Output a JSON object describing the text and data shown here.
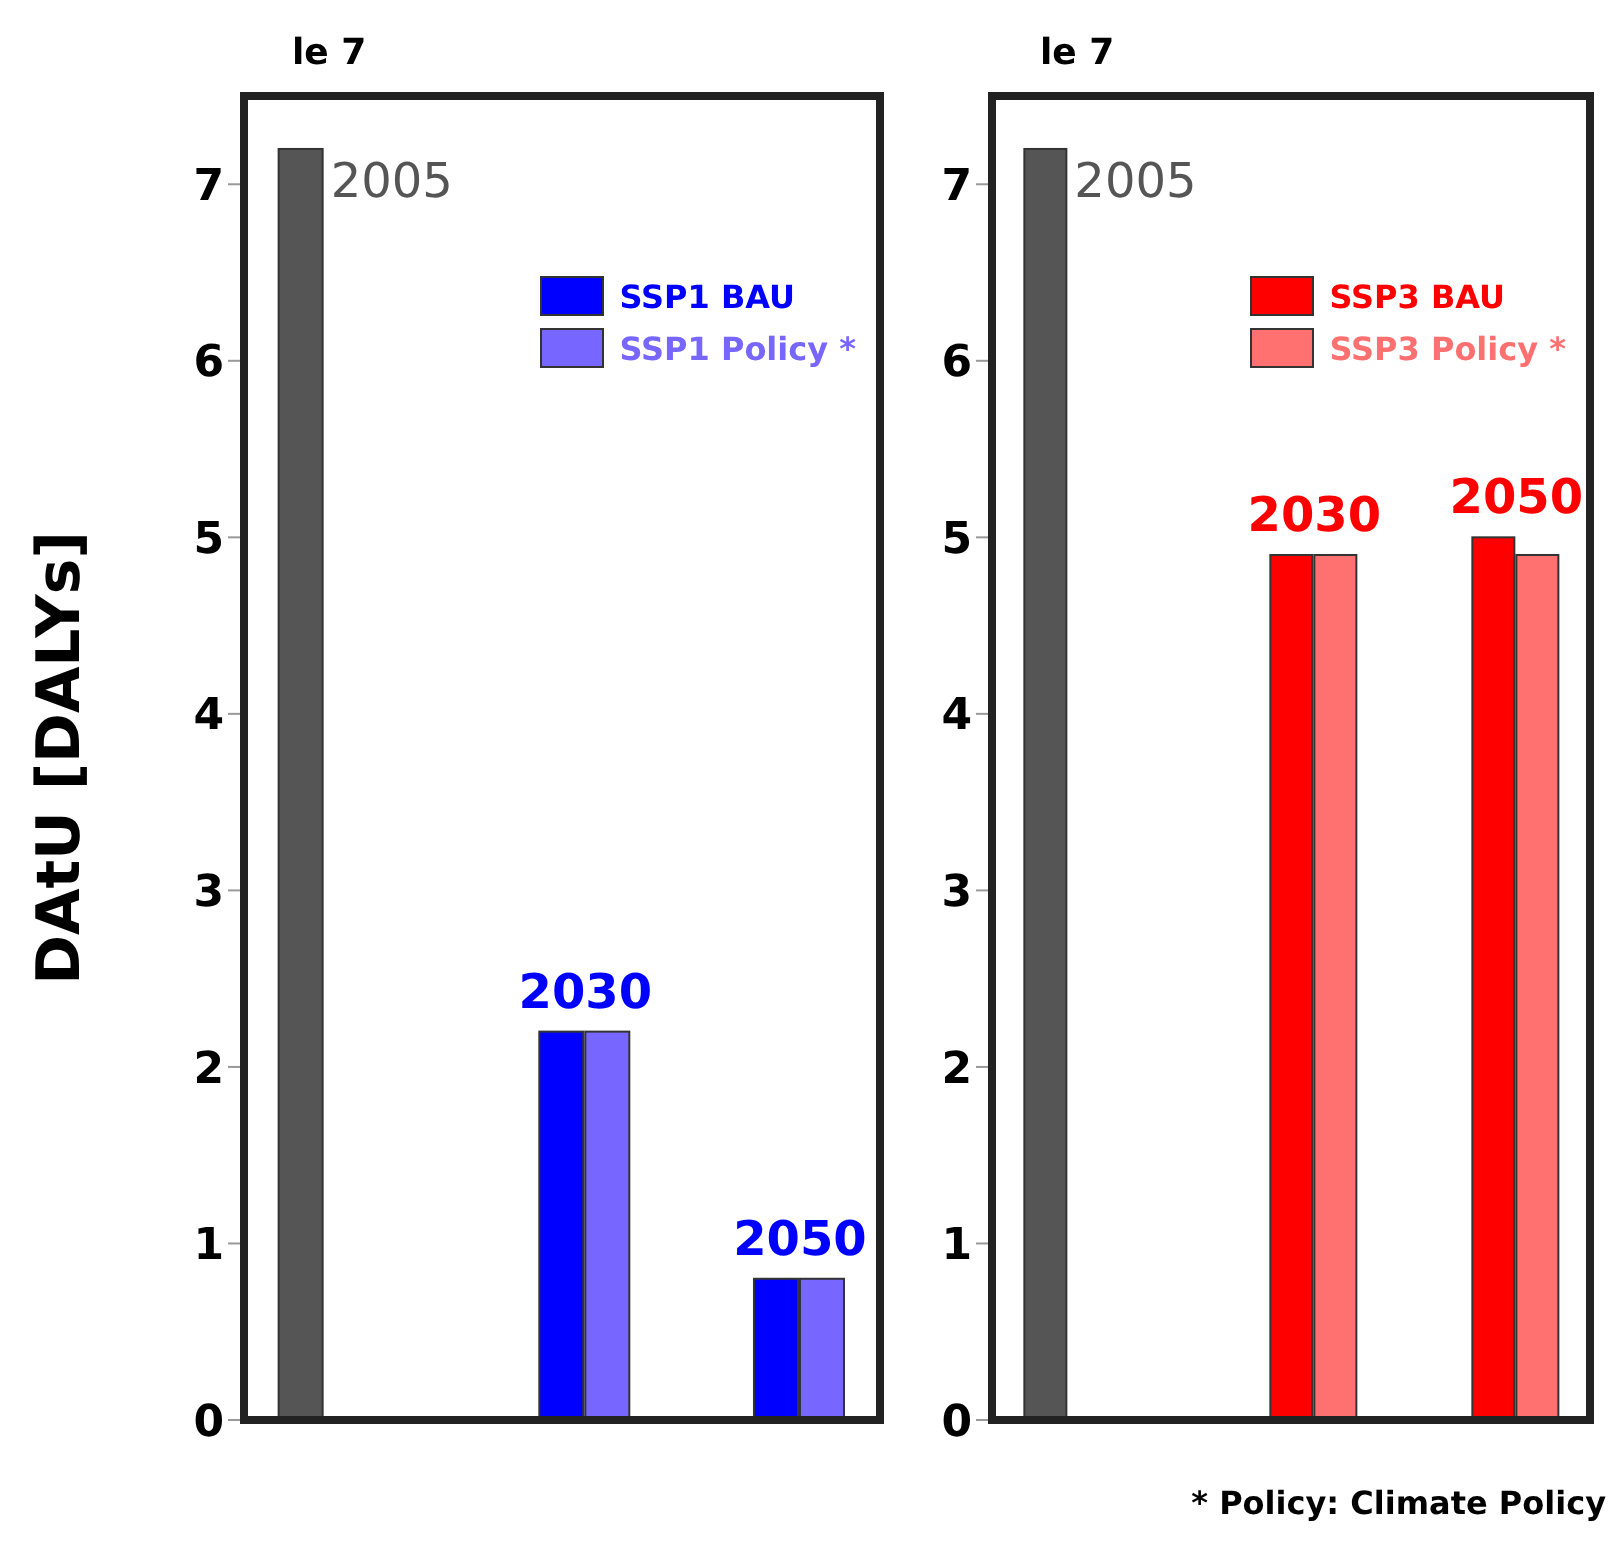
{
  "chart_data": [
    {
      "type": "bar",
      "ylabel": "DAtU [DALYs]",
      "annotations": [
        "le 7"
      ],
      "categories": [
        "2005",
        "2030",
        "2050"
      ],
      "series": [
        {
          "color": "#555555",
          "values": [
            7.2,
            null,
            null
          ]
        },
        {
          "name": "SSP1 BAU",
          "color": "#0000ff",
          "values": [
            null,
            2.2,
            0.8
          ]
        },
        {
          "name": "SSP1 Policy *",
          "color": "#7766ff",
          "values": [
            null,
            2.2,
            0.8
          ]
        }
      ],
      "ylim": [
        0,
        7.5
      ],
      "yticks": [
        0,
        1,
        2,
        3,
        4,
        5,
        6,
        7
      ],
      "grid": false,
      "legend": "top right"
    },
    {
      "type": "bar",
      "annotations": [
        "le 7",
        "* Policy: Climate Policy"
      ],
      "categories": [
        "2005",
        "2030",
        "2050"
      ],
      "series": [
        {
          "color": "#555555",
          "values": [
            7.2,
            null,
            null
          ]
        },
        {
          "name": "SSP3 BAU",
          "color": "#ff0000",
          "values": [
            null,
            4.9,
            5.0
          ]
        },
        {
          "name": "SSP3 Policy *",
          "color": "#ff7070",
          "values": [
            null,
            4.9,
            4.9
          ]
        }
      ],
      "ylim": [
        0,
        7.5
      ],
      "yticks": [
        0,
        1,
        2,
        3,
        4,
        5,
        6,
        7
      ],
      "grid": false,
      "legend": "top right"
    }
  ]
}
